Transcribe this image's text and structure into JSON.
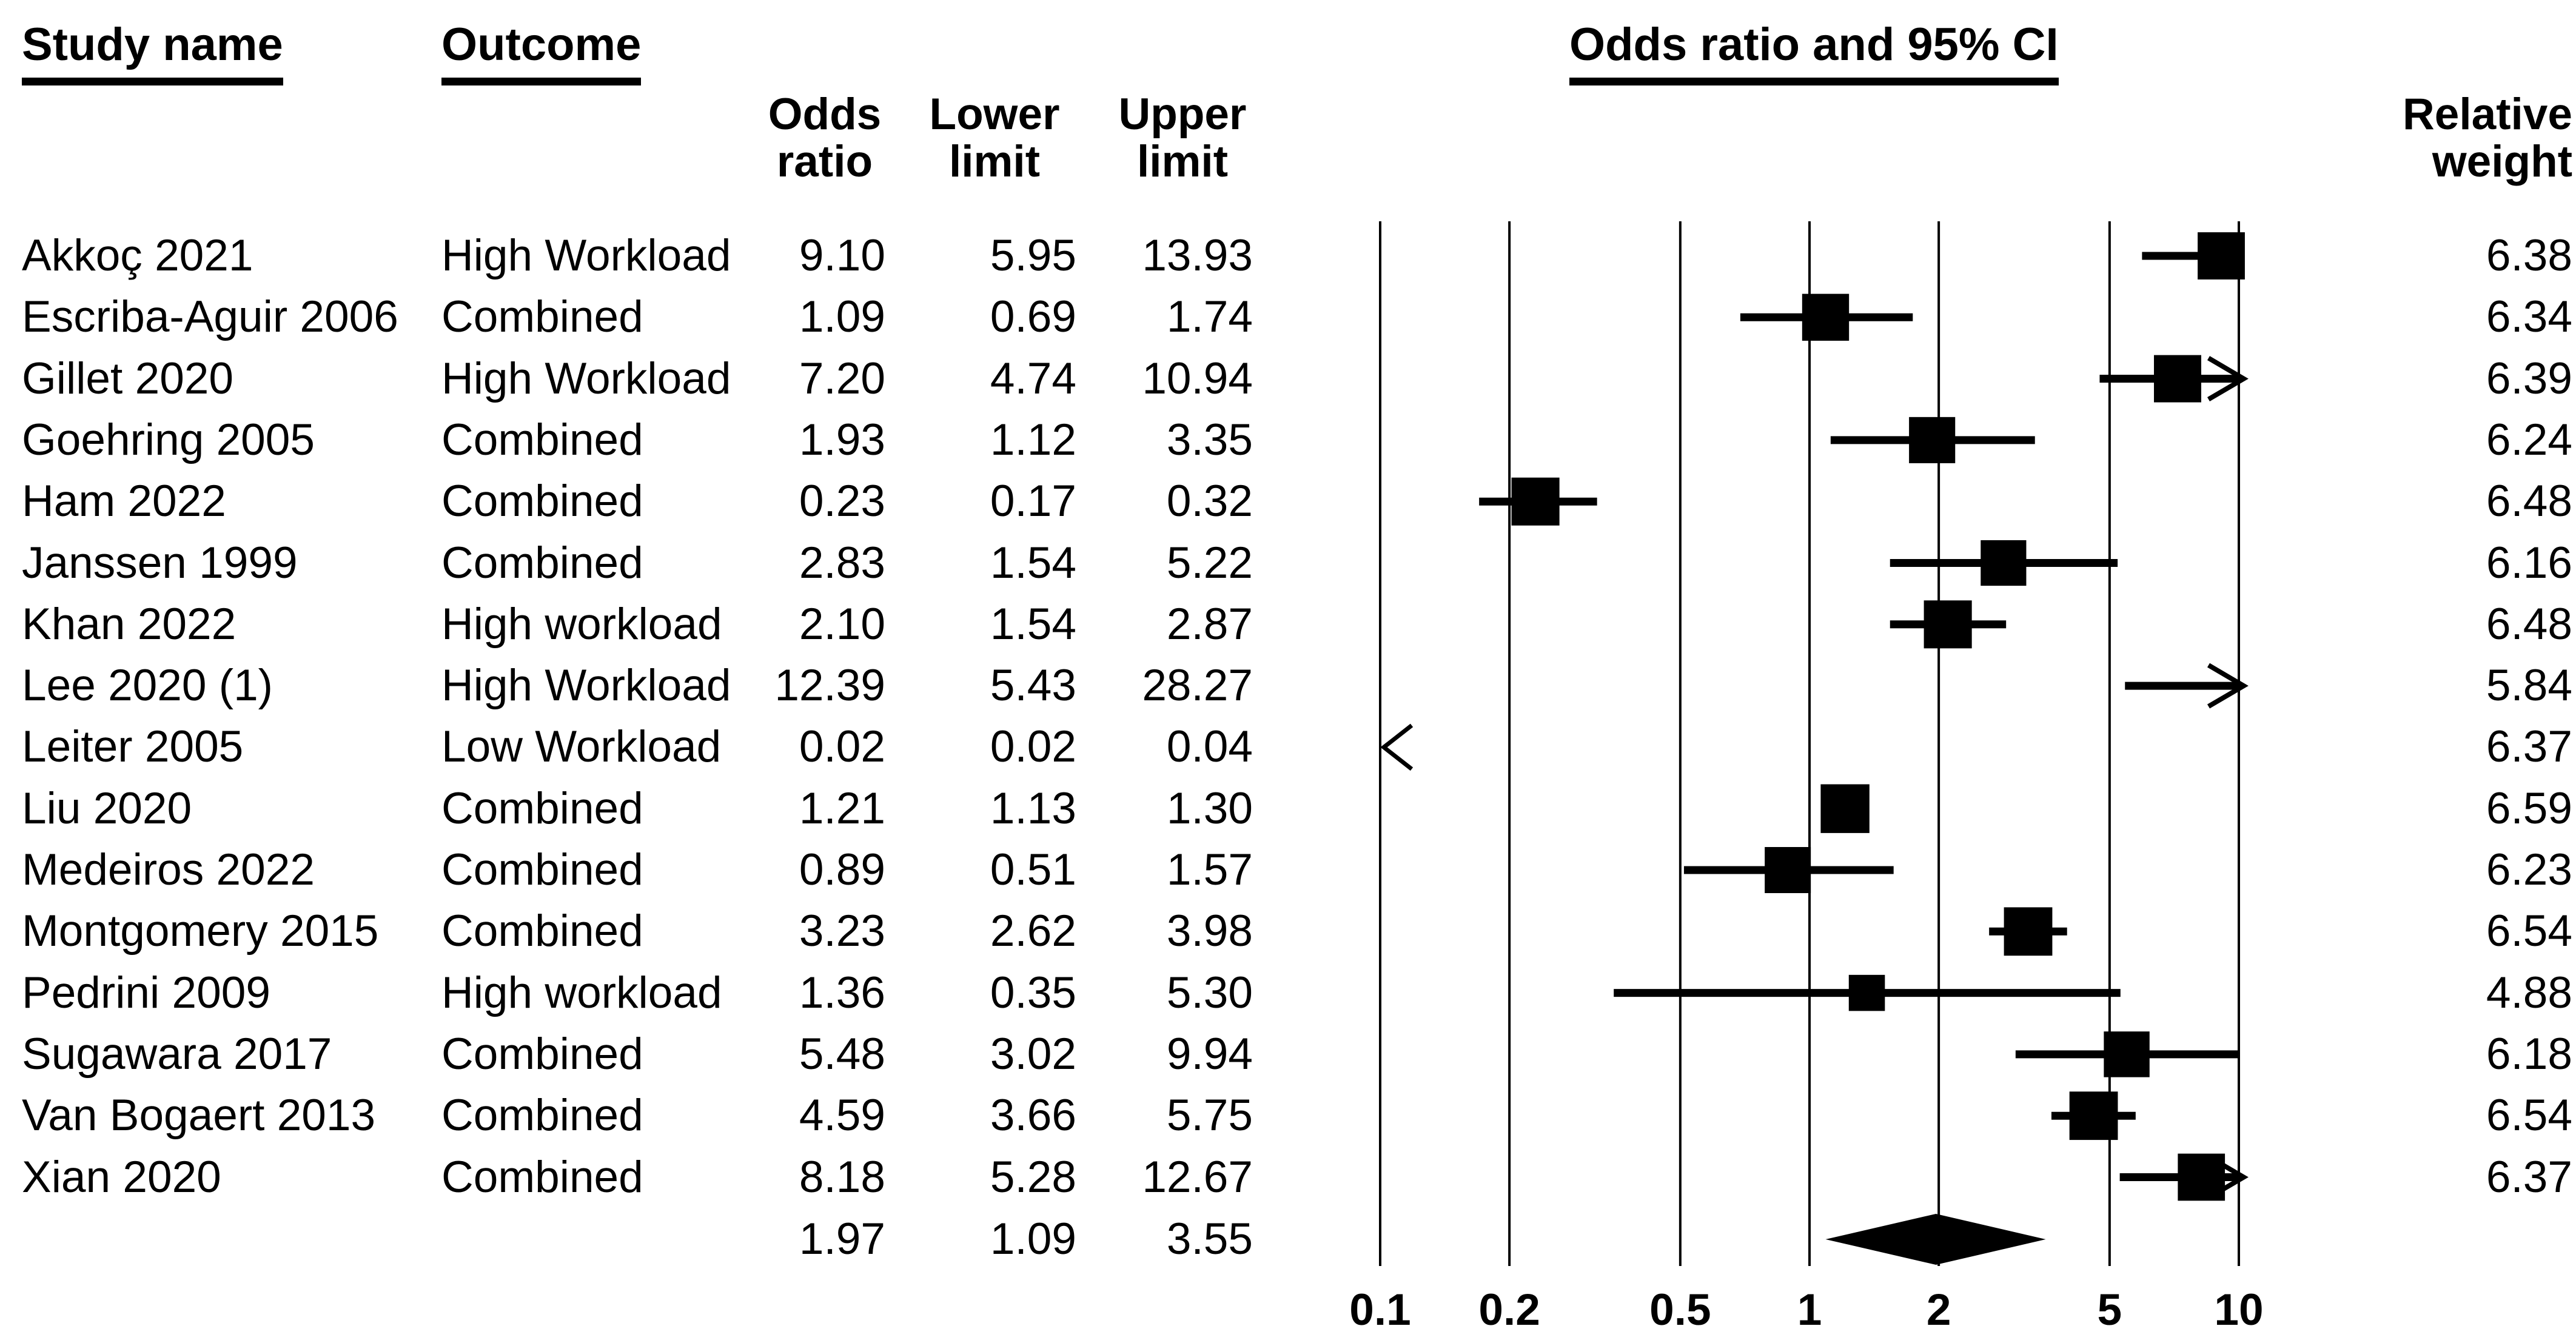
{
  "table": {
    "study_name_header": "Study name",
    "outcome_header": "Outcome",
    "columns": {
      "odds": [
        "Odds",
        "ratio"
      ],
      "lower": [
        "Lower",
        "limit"
      ],
      "upper": [
        "Upper",
        "limit"
      ],
      "relative": [
        "Relative",
        "weight"
      ]
    }
  },
  "chart_data": {
    "type": "forest",
    "title": "Odds ratio and 95% CI",
    "axis": {
      "scale": "log",
      "min": 0.1,
      "max": 10,
      "ticks": [
        "0.1",
        "0.2",
        "0.5",
        "1",
        "2",
        "5",
        "10"
      ]
    },
    "studies": [
      {
        "study": "Akkoç 2021",
        "outcome": "High Workload",
        "or": "9.10",
        "lower": "5.95",
        "upper": "13.93",
        "weight": "6.38"
      },
      {
        "study": "Escriba-Aguir 2006",
        "outcome": "Combined",
        "or": "1.09",
        "lower": "0.69",
        "upper": "1.74",
        "weight": "6.34"
      },
      {
        "study": "Gillet 2020",
        "outcome": "High Workload",
        "or": "7.20",
        "lower": "4.74",
        "upper": "10.94",
        "weight": "6.39"
      },
      {
        "study": "Goehring 2005",
        "outcome": "Combined",
        "or": "1.93",
        "lower": "1.12",
        "upper": "3.35",
        "weight": "6.24"
      },
      {
        "study": "Ham 2022",
        "outcome": "Combined",
        "or": "0.23",
        "lower": "0.17",
        "upper": "0.32",
        "weight": "6.48"
      },
      {
        "study": "Janssen 1999",
        "outcome": "Combined",
        "or": "2.83",
        "lower": "1.54",
        "upper": "5.22",
        "weight": "6.16"
      },
      {
        "study": "Khan 2022",
        "outcome": "High workload",
        "or": "2.10",
        "lower": "1.54",
        "upper": "2.87",
        "weight": "6.48"
      },
      {
        "study": "Lee 2020 (1)",
        "outcome": "High Workload",
        "or": "12.39",
        "lower": "5.43",
        "upper": "28.27",
        "weight": "5.84"
      },
      {
        "study": "Leiter 2005",
        "outcome": "Low Workload",
        "or": "0.02",
        "lower": "0.02",
        "upper": "0.04",
        "weight": "6.37"
      },
      {
        "study": "Liu 2020",
        "outcome": "Combined",
        "or": "1.21",
        "lower": "1.13",
        "upper": "1.30",
        "weight": "6.59"
      },
      {
        "study": "Medeiros 2022",
        "outcome": "Combined",
        "or": "0.89",
        "lower": "0.51",
        "upper": "1.57",
        "weight": "6.23"
      },
      {
        "study": "Montgomery 2015",
        "outcome": "Combined",
        "or": "3.23",
        "lower": "2.62",
        "upper": "3.98",
        "weight": "6.54"
      },
      {
        "study": "Pedrini 2009",
        "outcome": "High workload",
        "or": "1.36",
        "lower": "0.35",
        "upper": "5.30",
        "weight": "4.88"
      },
      {
        "study": "Sugawara 2017",
        "outcome": "Combined",
        "or": "5.48",
        "lower": "3.02",
        "upper": "9.94",
        "weight": "6.18"
      },
      {
        "study": "Van Bogaert 2013",
        "outcome": "Combined",
        "or": "4.59",
        "lower": "3.66",
        "upper": "5.75",
        "weight": "6.54"
      },
      {
        "study": "Xian 2020",
        "outcome": "Combined",
        "or": "8.18",
        "lower": "5.28",
        "upper": "12.67",
        "weight": "6.37"
      }
    ],
    "summary": {
      "or": "1.97",
      "lower": "1.09",
      "upper": "3.55"
    },
    "marker_color": "#000000",
    "background_color": "#ffffff"
  }
}
